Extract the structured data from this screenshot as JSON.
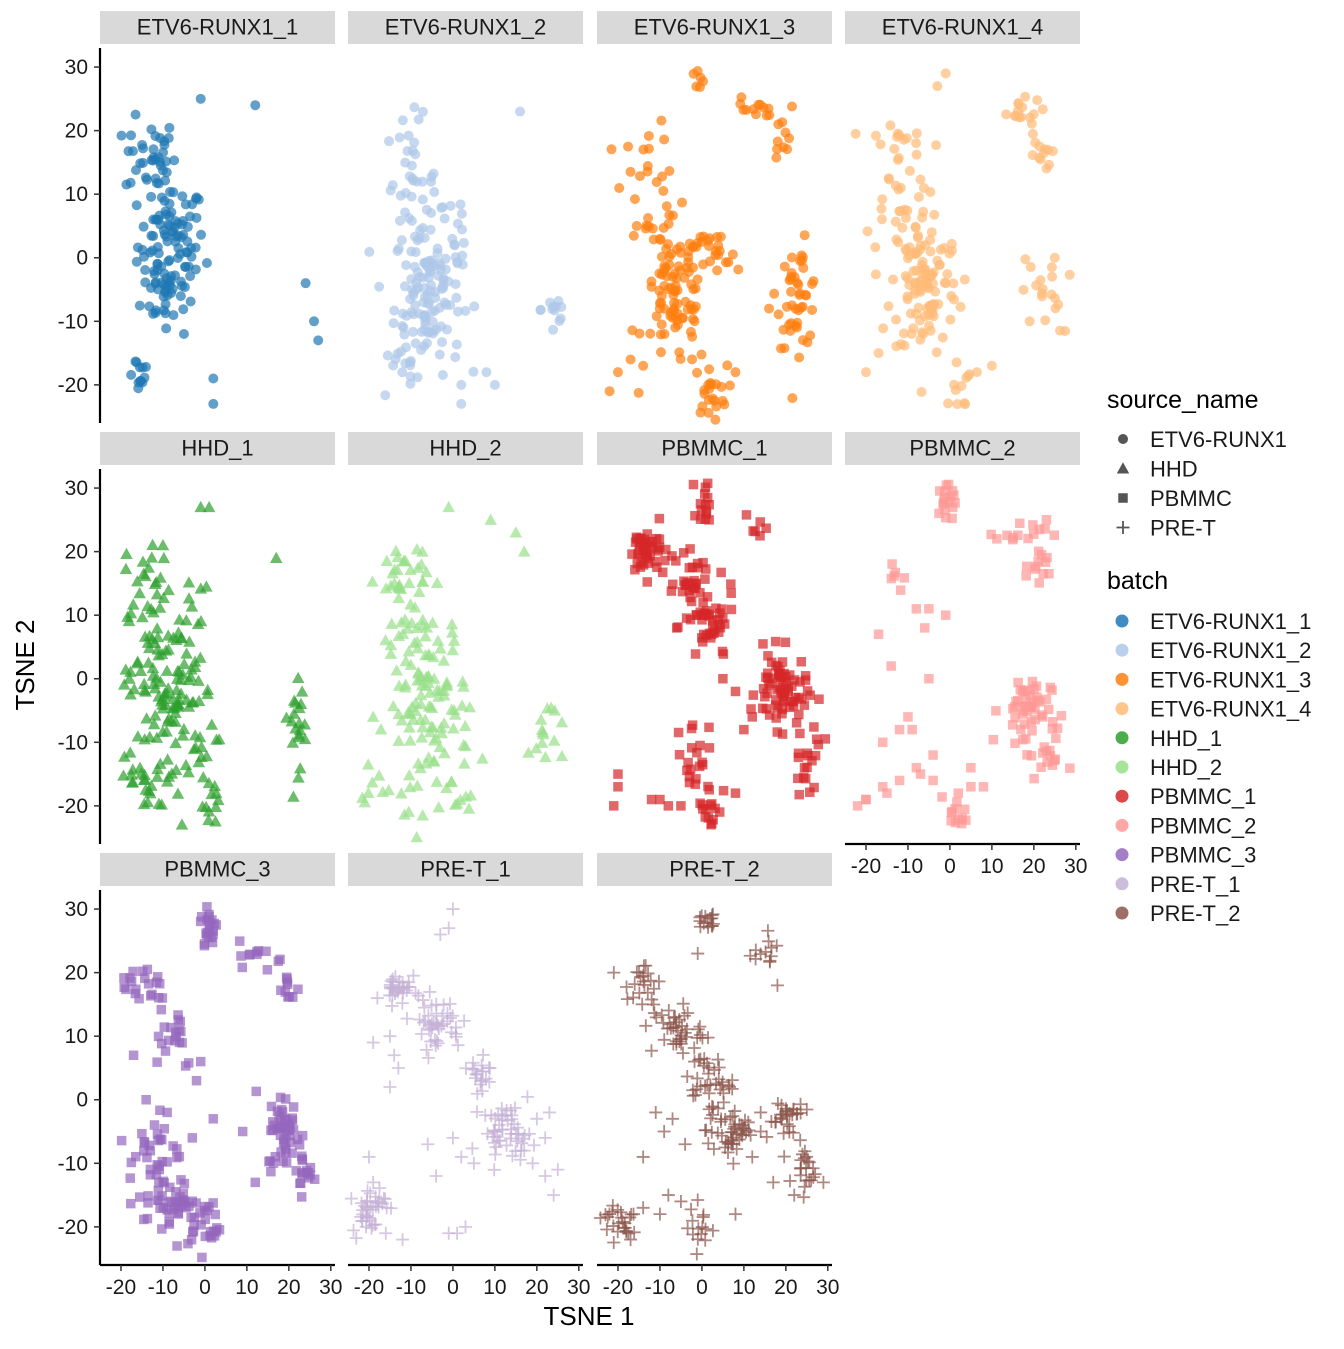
{
  "chart_data": {
    "type": "scatter",
    "xlabel": "TSNE 1",
    "ylabel": "TSNE 2",
    "xlim": [
      -25,
      31
    ],
    "ylim": [
      -26,
      33
    ],
    "x_ticks": [
      -20,
      -10,
      0,
      10,
      20,
      30
    ],
    "y_ticks": [
      -20,
      -10,
      0,
      10,
      20,
      30
    ],
    "x_tick_labels": [
      "-20",
      "-10",
      "0",
      "10",
      "20",
      "30"
    ],
    "y_tick_labels": [
      "-20",
      "-10",
      "0",
      "10",
      "20",
      "30"
    ],
    "grid": false,
    "legend_placement": "right",
    "shape_legend": {
      "title": "source_name",
      "entries": [
        {
          "label": "ETV6-RUNX1",
          "shape": "circle"
        },
        {
          "label": "HHD",
          "shape": "triangle"
        },
        {
          "label": "PBMMC",
          "shape": "square"
        },
        {
          "label": "PRE-T",
          "shape": "plus"
        }
      ]
    },
    "color_legend": {
      "title": "batch",
      "entries": [
        {
          "label": "ETV6-RUNX1_1",
          "color": "#1f77b4"
        },
        {
          "label": "ETV6-RUNX1_2",
          "color": "#aec7e8"
        },
        {
          "label": "ETV6-RUNX1_3",
          "color": "#ff7f0e"
        },
        {
          "label": "ETV6-RUNX1_4",
          "color": "#ffbb78"
        },
        {
          "label": "HHD_1",
          "color": "#2ca02c"
        },
        {
          "label": "HHD_2",
          "color": "#98df8a"
        },
        {
          "label": "PBMMC_1",
          "color": "#d62728"
        },
        {
          "label": "PBMMC_2",
          "color": "#ff9896"
        },
        {
          "label": "PBMMC_3",
          "color": "#9467bd"
        },
        {
          "label": "PRE-T_1",
          "color": "#c5b0d5"
        },
        {
          "label": "PRE-T_2",
          "color": "#8c564b"
        }
      ]
    },
    "panels": [
      {
        "batch": "ETV6-RUNX1_1",
        "shape": "circle",
        "color": "#1f77b4",
        "clusters": [
          [
            -8,
            2,
            4,
            5,
            95
          ],
          [
            -13,
            16,
            3,
            3,
            35
          ],
          [
            -16,
            -18,
            1.5,
            1.5,
            12
          ],
          [
            -9,
            -5,
            3,
            3,
            25
          ]
        ],
        "points": [
          [
            -1,
            25
          ],
          [
            12,
            24
          ],
          [
            24,
            -4
          ],
          [
            26,
            -10
          ],
          [
            27,
            -13
          ],
          [
            2,
            -19
          ],
          [
            2,
            -23
          ],
          [
            -5,
            -12
          ]
        ]
      },
      {
        "batch": "ETV6-RUNX1_2",
        "shape": "circle",
        "color": "#aec7e8",
        "clusters": [
          [
            -6,
            -6,
            4,
            6,
            110
          ],
          [
            -10,
            12,
            3,
            5,
            40
          ],
          [
            -12,
            -18,
            3,
            2,
            12
          ],
          [
            -1,
            2,
            3,
            6,
            20
          ],
          [
            24,
            -8,
            1.5,
            3,
            12
          ]
        ],
        "points": [
          [
            16,
            23
          ],
          [
            2,
            -20
          ],
          [
            2,
            -23
          ],
          [
            8,
            -18
          ],
          [
            10,
            -20
          ]
        ]
      },
      {
        "batch": "ETV6-RUNX1_3",
        "shape": "circle",
        "color": "#ff7f0e",
        "clusters": [
          [
            -6,
            -6,
            4,
            6,
            100
          ],
          [
            -13,
            12,
            3,
            5,
            25
          ],
          [
            23,
            -6,
            2.5,
            4,
            45
          ],
          [
            12,
            23,
            3,
            1,
            14
          ],
          [
            19,
            18,
            1.5,
            2,
            8
          ],
          [
            2,
            -21,
            2,
            2,
            22
          ],
          [
            -1,
            28,
            1,
            1,
            6
          ],
          [
            3,
            0,
            3,
            2,
            18
          ]
        ],
        "points": [
          [
            -20,
            -18
          ],
          [
            -14,
            -17
          ],
          [
            8,
            -18
          ],
          [
            -17,
            -16
          ],
          [
            -22,
            -21
          ],
          [
            16,
            -8
          ]
        ]
      },
      {
        "batch": "ETV6-RUNX1_4",
        "shape": "circle",
        "color": "#ffbb78",
        "clusters": [
          [
            -6,
            -4,
            4,
            6,
            110
          ],
          [
            -12,
            13,
            4,
            6,
            40
          ],
          [
            16,
            23,
            3,
            1,
            15
          ],
          [
            21,
            16,
            1.5,
            2,
            12
          ],
          [
            23,
            -6,
            3,
            3,
            18
          ],
          [
            2,
            -20,
            2,
            2,
            12
          ]
        ],
        "points": [
          [
            -1,
            29
          ],
          [
            -3,
            27
          ],
          [
            -20,
            -18
          ],
          [
            -17,
            -15
          ],
          [
            10,
            -17
          ],
          [
            25,
            0
          ],
          [
            19,
            -10
          ]
        ]
      },
      {
        "batch": "HHD_1",
        "shape": "triangle",
        "color": "#2ca02c",
        "clusters": [
          [
            -8,
            -2,
            5,
            8,
            130
          ],
          [
            -13,
            16,
            3,
            3,
            22
          ],
          [
            -15,
            -16,
            4,
            2,
            25
          ],
          [
            22,
            -6,
            2,
            4,
            20
          ],
          [
            2,
            -20,
            1.5,
            2,
            12
          ]
        ],
        "points": [
          [
            -1,
            27
          ],
          [
            1,
            27
          ],
          [
            17,
            19
          ],
          [
            -18,
            0
          ]
        ]
      },
      {
        "batch": "HHD_2",
        "shape": "triangle",
        "color": "#98df8a",
        "clusters": [
          [
            -6,
            -4,
            5,
            8,
            130
          ],
          [
            -12,
            16,
            3,
            3,
            30
          ],
          [
            22,
            -8,
            2,
            3,
            14
          ],
          [
            2,
            -20,
            1.5,
            1.5,
            6
          ],
          [
            -18,
            -18,
            2,
            2,
            6
          ]
        ],
        "points": [
          [
            -1,
            27
          ],
          [
            9,
            25
          ],
          [
            15,
            23
          ],
          [
            17,
            20
          ],
          [
            -19,
            -6
          ]
        ]
      },
      {
        "batch": "PBMMC_1",
        "shape": "square",
        "color": "#d62728",
        "clusters": [
          [
            -13,
            20,
            2.5,
            2,
            45
          ],
          [
            -2,
            15,
            2,
            2,
            30
          ],
          [
            2,
            8,
            3,
            3,
            40
          ],
          [
            19,
            -2,
            3,
            3,
            70
          ],
          [
            25,
            -12,
            2,
            3,
            20
          ],
          [
            1,
            28,
            1,
            2,
            15
          ],
          [
            13,
            24,
            1.5,
            1,
            6
          ],
          [
            -2,
            -12,
            2,
            3,
            20
          ],
          [
            2,
            -20,
            1.5,
            2,
            15
          ]
        ],
        "points": [
          [
            -10,
            -19
          ],
          [
            -12,
            -19
          ],
          [
            -8,
            -20
          ],
          [
            -20,
            -17
          ],
          [
            -21,
            -20
          ],
          [
            -5,
            -20
          ],
          [
            8,
            -18
          ],
          [
            -20,
            -15
          ],
          [
            -6,
            8
          ],
          [
            12,
            -6
          ],
          [
            8,
            -2
          ],
          [
            5,
            0
          ],
          [
            10,
            -8
          ]
        ]
      },
      {
        "batch": "PBMMC_2",
        "shape": "square",
        "color": "#ff9896",
        "clusters": [
          [
            18,
            -5,
            3,
            3,
            50
          ],
          [
            23,
            -12,
            2,
            2,
            15
          ],
          [
            -1,
            27,
            1.2,
            2,
            18
          ],
          [
            17,
            23,
            3,
            1,
            14
          ],
          [
            21,
            17,
            1.5,
            1.5,
            12
          ],
          [
            2,
            -21,
            1.5,
            1.5,
            12
          ],
          [
            -14,
            16,
            1.5,
            1.5,
            6
          ]
        ],
        "points": [
          [
            -5,
            11
          ],
          [
            -6,
            8
          ],
          [
            -5,
            0
          ],
          [
            -20,
            -19
          ],
          [
            -16,
            -17
          ],
          [
            -12,
            -16
          ],
          [
            -8,
            -14
          ],
          [
            -4,
            -16
          ],
          [
            5,
            -17
          ],
          [
            8,
            -17
          ],
          [
            -16,
            -10
          ],
          [
            -12,
            -8
          ],
          [
            -9,
            -8
          ],
          [
            -4,
            -12
          ],
          [
            -14,
            2
          ],
          [
            -10,
            -6
          ],
          [
            -20,
            -19
          ],
          [
            -22,
            -20
          ],
          [
            -15,
            -18
          ],
          [
            -7,
            -15
          ],
          [
            2,
            -18
          ],
          [
            5,
            -14
          ],
          [
            -1,
            10
          ],
          [
            -17,
            7
          ],
          [
            -8,
            11
          ]
        ]
      },
      {
        "batch": "PBMMC_3",
        "shape": "square",
        "color": "#9467bd",
        "clusters": [
          [
            -8,
            -16,
            4,
            2,
            45
          ],
          [
            0,
            -20,
            2,
            2,
            25
          ],
          [
            -12,
            -8,
            3,
            3,
            30
          ],
          [
            -14,
            18,
            3,
            2,
            20
          ],
          [
            -8,
            11,
            3,
            3,
            20
          ],
          [
            1,
            27,
            1,
            2,
            22
          ],
          [
            14,
            23,
            3,
            1,
            12
          ],
          [
            20,
            17,
            1.5,
            1.5,
            10
          ],
          [
            19,
            -5,
            2,
            3,
            50
          ],
          [
            24,
            -12,
            1.5,
            2,
            15
          ]
        ],
        "points": [
          [
            -1,
            6
          ],
          [
            -2,
            3
          ],
          [
            -17,
            7
          ],
          [
            2,
            -3
          ],
          [
            9,
            -5
          ],
          [
            12,
            -13
          ],
          [
            -3,
            -6
          ],
          [
            -14,
            0
          ],
          [
            -9,
            -2
          ]
        ]
      },
      {
        "batch": "PRE-T_1",
        "shape": "plus",
        "color": "#c5b0d5",
        "clusters": [
          [
            -13,
            18,
            1.5,
            1.5,
            30
          ],
          [
            -4,
            12,
            3,
            2,
            45
          ],
          [
            6,
            4,
            2,
            2,
            20
          ],
          [
            -20,
            -17,
            2,
            2,
            40
          ],
          [
            13,
            -5,
            3,
            2,
            50
          ]
        ],
        "points": [
          [
            0,
            30
          ],
          [
            -1,
            27
          ],
          [
            -3,
            26
          ],
          [
            -18,
            16
          ],
          [
            -15,
            10
          ],
          [
            -19,
            9
          ],
          [
            -14,
            7
          ],
          [
            -13,
            5
          ],
          [
            -15,
            2
          ],
          [
            -6,
            -7
          ],
          [
            -4,
            -12
          ],
          [
            2,
            -9
          ],
          [
            5,
            -10
          ],
          [
            0,
            -6
          ],
          [
            3,
            -20
          ],
          [
            -1,
            -21
          ],
          [
            1,
            -21
          ],
          [
            -16,
            -21
          ],
          [
            -12,
            -22
          ],
          [
            17,
            -8
          ],
          [
            19,
            -10
          ],
          [
            22,
            -12
          ],
          [
            24,
            -15
          ],
          [
            25,
            -11
          ],
          [
            20,
            -3
          ],
          [
            23,
            -2
          ],
          [
            22,
            -6
          ],
          [
            -20,
            -9
          ],
          [
            -19,
            -13
          ]
        ]
      },
      {
        "batch": "PRE-T_2",
        "shape": "plus",
        "color": "#8c564b",
        "clusters": [
          [
            -14,
            18,
            2,
            2,
            20
          ],
          [
            -6,
            11,
            3,
            2,
            40
          ],
          [
            1,
            3,
            3,
            2,
            35
          ],
          [
            7,
            -5,
            3,
            2,
            50
          ],
          [
            20,
            -3,
            2,
            2,
            30
          ],
          [
            24,
            -11,
            1.5,
            2,
            20
          ],
          [
            -20,
            -19,
            3,
            1.5,
            25
          ],
          [
            0,
            -20,
            1.5,
            2,
            15
          ],
          [
            1,
            28,
            2,
            1,
            15
          ],
          [
            15,
            23,
            2,
            1,
            12
          ]
        ],
        "points": [
          [
            -1,
            23
          ],
          [
            18,
            18
          ],
          [
            -15,
            20
          ],
          [
            -21,
            20
          ],
          [
            -9,
            -5
          ],
          [
            -11,
            -2
          ],
          [
            -14,
            -9
          ],
          [
            -5,
            -16
          ],
          [
            -10,
            -18
          ],
          [
            -8,
            -15
          ],
          [
            8,
            -18
          ],
          [
            14,
            -5
          ],
          [
            17,
            -13
          ],
          [
            12,
            -9
          ],
          [
            14,
            -2
          ],
          [
            22,
            -15
          ],
          [
            -4,
            -7
          ],
          [
            -7,
            -3
          ],
          [
            -17,
            -22
          ],
          [
            -14,
            -17
          ]
        ]
      }
    ]
  }
}
